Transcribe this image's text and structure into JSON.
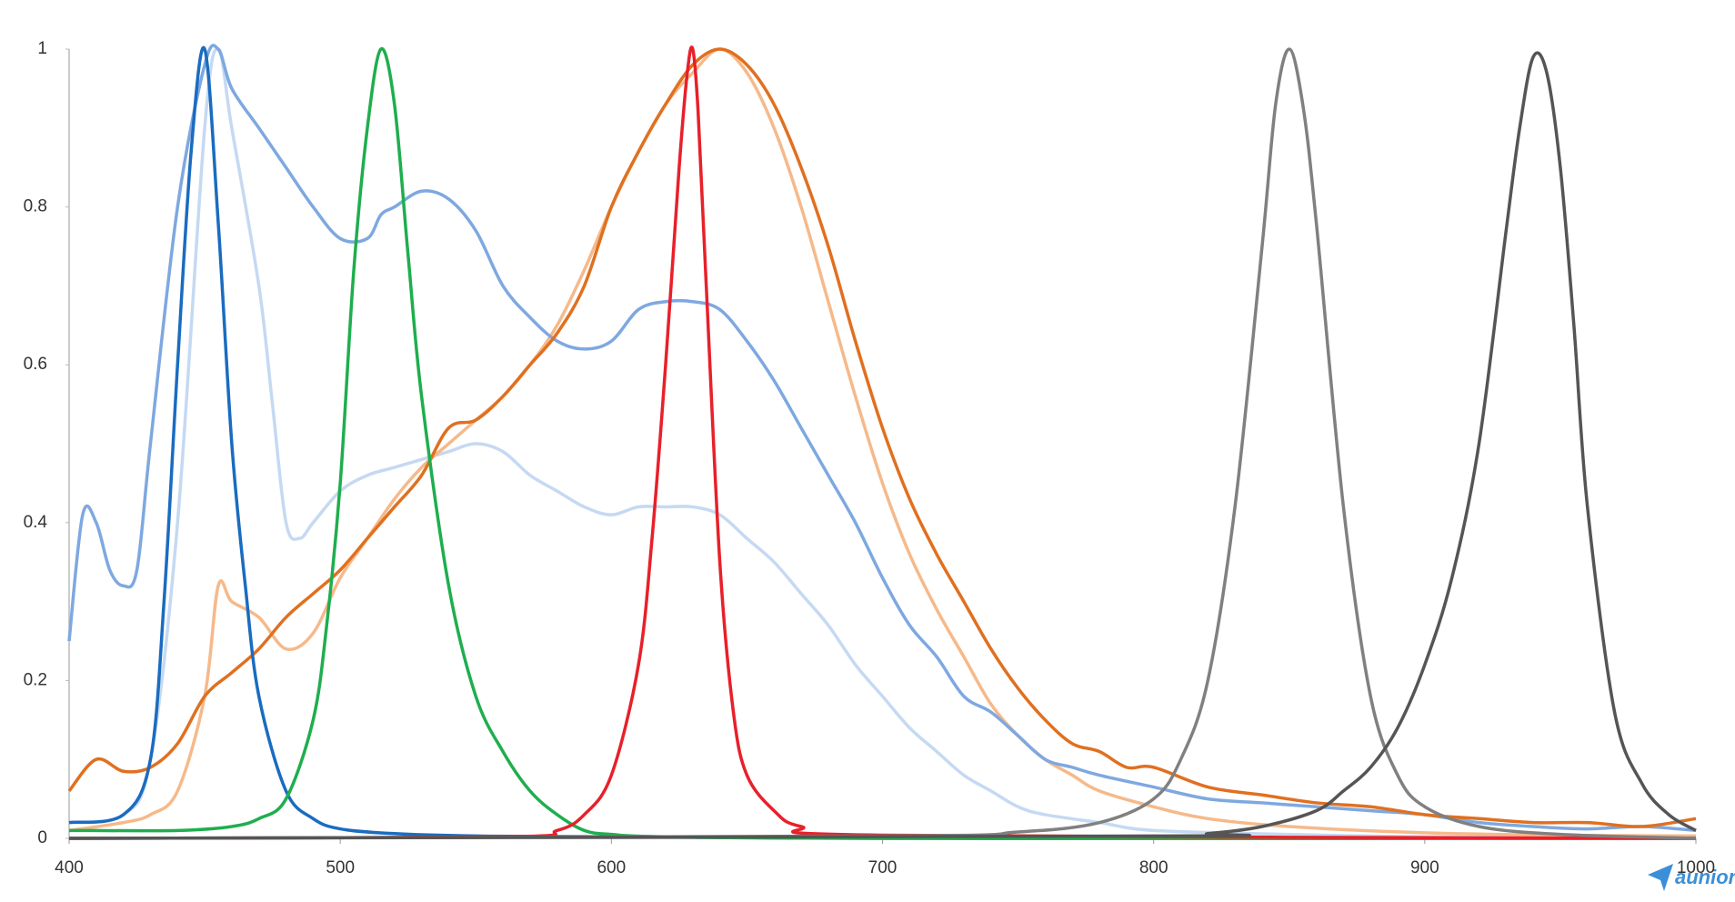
{
  "chart_data": {
    "type": "line",
    "xlim": [
      400,
      1000
    ],
    "ylim": [
      0,
      1
    ],
    "xticks": [
      400,
      500,
      600,
      700,
      800,
      900,
      1000
    ],
    "yticks": [
      0,
      0.2,
      0.4,
      0.6,
      0.8,
      1
    ],
    "grid": false,
    "series": [
      {
        "color": "#c5d9f2",
        "x": [
          400,
          420,
          430,
          440,
          450,
          455,
          460,
          470,
          475,
          480,
          485,
          490,
          500,
          510,
          520,
          530,
          540,
          550,
          560,
          570,
          580,
          590,
          600,
          610,
          620,
          630,
          640,
          650,
          660,
          670,
          680,
          690,
          700,
          710,
          720,
          730,
          740,
          750,
          760,
          780,
          800,
          850,
          900,
          1000
        ],
        "values": [
          0.02,
          0.03,
          0.1,
          0.4,
          0.9,
          1.0,
          0.9,
          0.7,
          0.55,
          0.4,
          0.38,
          0.4,
          0.44,
          0.46,
          0.47,
          0.48,
          0.49,
          0.5,
          0.49,
          0.46,
          0.44,
          0.42,
          0.41,
          0.42,
          0.42,
          0.42,
          0.41,
          0.38,
          0.35,
          0.31,
          0.27,
          0.22,
          0.18,
          0.14,
          0.11,
          0.08,
          0.06,
          0.04,
          0.03,
          0.02,
          0.01,
          0.005,
          0.002,
          0
        ]
      },
      {
        "color": "#f6b98a",
        "x": [
          400,
          420,
          430,
          440,
          450,
          455,
          460,
          470,
          480,
          490,
          500,
          510,
          520,
          530,
          540,
          550,
          560,
          570,
          580,
          590,
          600,
          610,
          620,
          630,
          640,
          650,
          660,
          670,
          680,
          690,
          700,
          710,
          720,
          730,
          740,
          750,
          760,
          770,
          780,
          800,
          820,
          850,
          900,
          950,
          1000
        ],
        "values": [
          0.01,
          0.02,
          0.03,
          0.06,
          0.18,
          0.32,
          0.3,
          0.28,
          0.24,
          0.26,
          0.33,
          0.38,
          0.43,
          0.47,
          0.5,
          0.53,
          0.56,
          0.6,
          0.65,
          0.72,
          0.8,
          0.87,
          0.93,
          0.97,
          1.0,
          0.97,
          0.9,
          0.8,
          0.68,
          0.56,
          0.45,
          0.36,
          0.29,
          0.23,
          0.17,
          0.13,
          0.1,
          0.08,
          0.06,
          0.04,
          0.025,
          0.015,
          0.007,
          0.004,
          0.003
        ]
      },
      {
        "color": "#7ea8e0",
        "x": [
          400,
          405,
          410,
          415,
          420,
          425,
          430,
          440,
          450,
          455,
          460,
          470,
          480,
          490,
          500,
          510,
          515,
          520,
          530,
          540,
          550,
          560,
          570,
          580,
          590,
          600,
          610,
          620,
          630,
          640,
          650,
          660,
          670,
          680,
          690,
          700,
          710,
          720,
          730,
          740,
          750,
          760,
          770,
          780,
          800,
          820,
          840,
          860,
          880,
          900,
          920,
          940,
          960,
          980,
          1000
        ],
        "values": [
          0.25,
          0.41,
          0.4,
          0.34,
          0.32,
          0.34,
          0.5,
          0.8,
          0.98,
          1.0,
          0.95,
          0.9,
          0.85,
          0.8,
          0.76,
          0.76,
          0.79,
          0.8,
          0.82,
          0.81,
          0.77,
          0.7,
          0.66,
          0.63,
          0.62,
          0.63,
          0.67,
          0.68,
          0.68,
          0.67,
          0.63,
          0.58,
          0.52,
          0.46,
          0.4,
          0.33,
          0.27,
          0.23,
          0.18,
          0.16,
          0.13,
          0.1,
          0.09,
          0.08,
          0.065,
          0.05,
          0.045,
          0.04,
          0.035,
          0.03,
          0.02,
          0.015,
          0.012,
          0.015,
          0.01
        ]
      },
      {
        "color": "#e07020",
        "x": [
          400,
          410,
          420,
          430,
          440,
          450,
          460,
          470,
          480,
          490,
          500,
          510,
          520,
          530,
          540,
          550,
          560,
          570,
          580,
          590,
          600,
          610,
          620,
          630,
          640,
          650,
          660,
          670,
          680,
          690,
          700,
          710,
          720,
          730,
          740,
          750,
          760,
          770,
          780,
          790,
          800,
          820,
          840,
          860,
          880,
          900,
          920,
          940,
          960,
          980,
          1000
        ],
        "values": [
          0.06,
          0.1,
          0.085,
          0.09,
          0.12,
          0.18,
          0.21,
          0.24,
          0.28,
          0.31,
          0.34,
          0.38,
          0.42,
          0.46,
          0.52,
          0.53,
          0.56,
          0.6,
          0.64,
          0.7,
          0.8,
          0.87,
          0.93,
          0.98,
          1.0,
          0.98,
          0.93,
          0.85,
          0.75,
          0.63,
          0.52,
          0.43,
          0.36,
          0.3,
          0.24,
          0.19,
          0.15,
          0.12,
          0.11,
          0.09,
          0.09,
          0.065,
          0.055,
          0.045,
          0.04,
          0.03,
          0.025,
          0.02,
          0.02,
          0.015,
          0.025
        ]
      },
      {
        "color": "#1a6cc0",
        "x": [
          400,
          420,
          430,
          435,
          440,
          445,
          450,
          455,
          460,
          465,
          470,
          480,
          490,
          500,
          520,
          550,
          600,
          700,
          800,
          900,
          1000
        ],
        "values": [
          0.02,
          0.03,
          0.1,
          0.3,
          0.6,
          0.87,
          1.0,
          0.78,
          0.5,
          0.32,
          0.18,
          0.06,
          0.025,
          0.012,
          0.006,
          0.003,
          0.002,
          0,
          0,
          0,
          0
        ]
      },
      {
        "color": "#1fae4e",
        "x": [
          400,
          440,
          460,
          470,
          480,
          490,
          495,
          500,
          505,
          510,
          515,
          520,
          525,
          530,
          540,
          550,
          560,
          570,
          580,
          590,
          600,
          620,
          700,
          1000
        ],
        "values": [
          0.01,
          0.01,
          0.015,
          0.025,
          0.05,
          0.15,
          0.27,
          0.45,
          0.72,
          0.9,
          1.0,
          0.93,
          0.74,
          0.56,
          0.32,
          0.18,
          0.11,
          0.06,
          0.03,
          0.01,
          0.005,
          0.002,
          0,
          0
        ]
      },
      {
        "color": "#e8202a",
        "x": [
          400,
          560,
          580,
          590,
          600,
          610,
          615,
          620,
          625,
          628,
          630,
          632,
          635,
          640,
          645,
          650,
          660,
          670,
          700,
          1000
        ],
        "values": [
          0,
          0.002,
          0.01,
          0.03,
          0.08,
          0.22,
          0.38,
          0.6,
          0.85,
          0.97,
          1.0,
          0.92,
          0.7,
          0.35,
          0.16,
          0.08,
          0.035,
          0.015,
          0.004,
          0
        ]
      },
      {
        "color": "#808080",
        "x": [
          400,
          700,
          750,
          780,
          800,
          810,
          820,
          830,
          840,
          845,
          850,
          855,
          860,
          870,
          880,
          890,
          900,
          920,
          950,
          1000
        ],
        "values": [
          0,
          0.003,
          0.008,
          0.02,
          0.05,
          0.1,
          0.2,
          0.42,
          0.75,
          0.93,
          1.0,
          0.93,
          0.78,
          0.42,
          0.18,
          0.08,
          0.04,
          0.015,
          0.005,
          0
        ]
      },
      {
        "color": "#555555",
        "x": [
          400,
          800,
          820,
          840,
          860,
          870,
          880,
          890,
          900,
          910,
          920,
          930,
          935,
          940,
          945,
          950,
          955,
          960,
          970,
          980,
          990,
          1000
        ],
        "values": [
          0,
          0.003,
          0.006,
          0.015,
          0.035,
          0.06,
          0.09,
          0.14,
          0.22,
          0.33,
          0.5,
          0.77,
          0.9,
          0.99,
          0.97,
          0.85,
          0.65,
          0.42,
          0.16,
          0.07,
          0.03,
          0.01
        ]
      }
    ]
  },
  "logo": "aunion"
}
